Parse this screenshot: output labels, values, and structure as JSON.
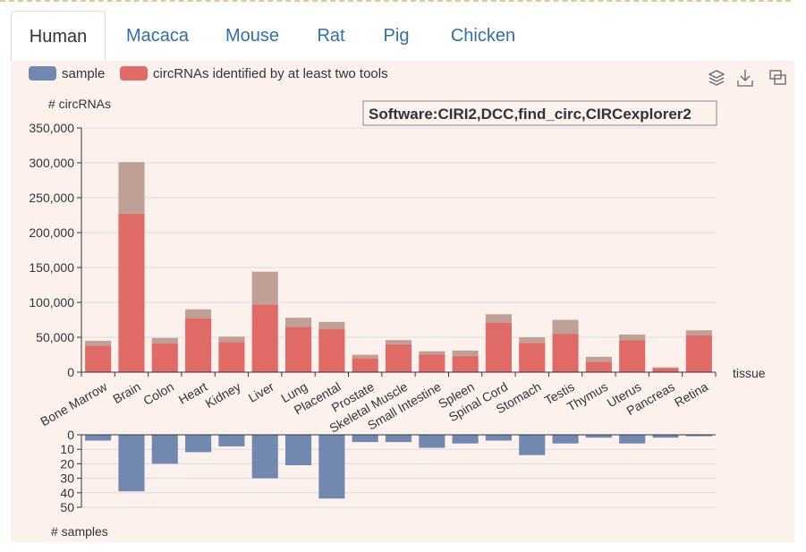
{
  "tabs": [
    {
      "label": "Human",
      "active": true
    },
    {
      "label": "Macaca",
      "active": false
    },
    {
      "label": "Mouse",
      "active": false
    },
    {
      "label": "Rat",
      "active": false
    },
    {
      "label": "Pig",
      "active": false
    },
    {
      "label": "Chicken",
      "active": false
    }
  ],
  "toolbox": {
    "icons": [
      "layers-icon",
      "download-icon",
      "restore-icon"
    ]
  },
  "colors": {
    "sample": "#7189b0",
    "identified": "#e06a66",
    "total": "#bfa097",
    "panel": "#fdf1ee",
    "tabs": "#2f6fad"
  },
  "chart_data": [
    {
      "type": "bar",
      "stacked": true,
      "title": "Software:CIRI2,DCC,find_circ,CIRCexplorer2",
      "ylabel": "# circRNAs",
      "xlabel": "tissue",
      "ylim": [
        0,
        350000
      ],
      "yticks": [
        "0",
        "50,000",
        "100,000",
        "150,000",
        "200,000",
        "250,000",
        "300,000",
        "350,000"
      ],
      "legend": [
        {
          "name": "sample",
          "color": "#7189b0"
        },
        {
          "name": "circRNAs identified by at least two tools",
          "color": "#e06a66"
        }
      ],
      "legend_position": "top-left",
      "categories": [
        "Bone Marrow",
        "Brain",
        "Colon",
        "Heart",
        "Kidney",
        "Liver",
        "Lung",
        "Placental",
        "Prostate",
        "Skeletal Muscle",
        "Small Intestine",
        "Spleen",
        "Spinal Cord",
        "Stomach",
        "Testis",
        "Thymus",
        "Uterus",
        "Pancreas",
        "Retina"
      ],
      "series": [
        {
          "name": "circRNAs identified by at least two tools",
          "color": "#e06a66",
          "values": [
            38000,
            227000,
            41000,
            77000,
            43000,
            97000,
            65000,
            62000,
            20000,
            40000,
            25000,
            23000,
            71000,
            42000,
            55000,
            15000,
            46000,
            6000,
            53000
          ]
        },
        {
          "color": "#bfa097",
          "values": [
            7000,
            74000,
            8000,
            13000,
            8000,
            47000,
            13000,
            10000,
            5000,
            6000,
            5000,
            8000,
            12000,
            8000,
            20000,
            7000,
            8000,
            1000,
            7000
          ]
        }
      ],
      "grid": true
    },
    {
      "type": "bar",
      "ylabel": "# samples",
      "ylim": [
        0,
        50
      ],
      "inverted": true,
      "yticks": [
        "0",
        "10",
        "20",
        "30",
        "40",
        "50"
      ],
      "categories": [
        "Bone Marrow",
        "Brain",
        "Colon",
        "Heart",
        "Kidney",
        "Liver",
        "Lung",
        "Placental",
        "Prostate",
        "Skeletal Muscle",
        "Small Intestine",
        "Spleen",
        "Spinal Cord",
        "Stomach",
        "Testis",
        "Thymus",
        "Uterus",
        "Pancreas",
        "Retina"
      ],
      "series": [
        {
          "name": "sample",
          "color": "#7189b0",
          "values": [
            4,
            39,
            20,
            12,
            8,
            30,
            21,
            44,
            5,
            5,
            9,
            6,
            4,
            14,
            6,
            2,
            6,
            2,
            1
          ]
        }
      ],
      "grid": true
    }
  ]
}
